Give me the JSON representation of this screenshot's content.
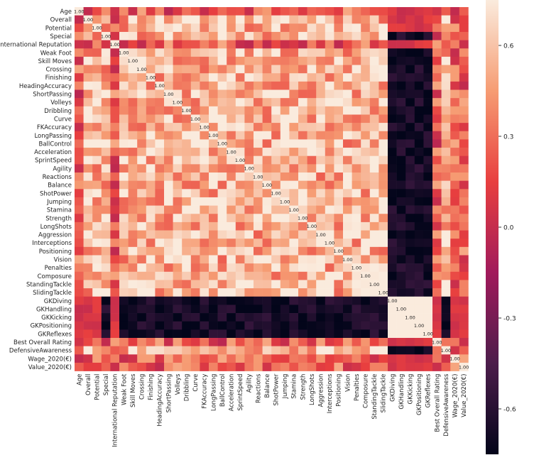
{
  "chart_data": {
    "type": "heatmap",
    "title": "",
    "xlabel": "",
    "ylabel": "",
    "rows": [
      "Age",
      "Overall",
      "Potential",
      "Special",
      "International Reputation",
      "Weak Foot",
      "Skill Moves",
      "Crossing",
      "Finishing",
      "HeadingAccuracy",
      "ShortPassing",
      "Volleys",
      "Dribbling",
      "Curve",
      "FKAccuracy",
      "LongPassing",
      "BallControl",
      "Acceleration",
      "SprintSpeed",
      "Agility",
      "Reactions",
      "Balance",
      "ShotPower",
      "Jumping",
      "Stamina",
      "Strength",
      "LongShots",
      "Aggression",
      "Interceptions",
      "Positioning",
      "Vision",
      "Penalties",
      "Composure",
      "StandingTackle",
      "SlidingTackle",
      "GKDiving",
      "GKHandling",
      "GKKicking",
      "GKPositioning",
      "GKReflexes",
      "Best Overall Rating",
      "DefensiveAwareness",
      "Wage_2020(€)",
      "Value_2020(€)"
    ],
    "columns": [
      "Age",
      "Overall",
      "Potential",
      "Special",
      "International Reputation",
      "Weak Foot",
      "Skill Moves",
      "Crossing",
      "Finishing",
      "HeadingAccuracy",
      "ShortPassing",
      "Volleys",
      "Dribbling",
      "Curve",
      "FKAccuracy",
      "LongPassing",
      "BallControl",
      "Acceleration",
      "SprintSpeed",
      "Agility",
      "Reactions",
      "Balance",
      "ShotPower",
      "Jumping",
      "Stamina",
      "Strength",
      "LongShots",
      "Aggression",
      "Interceptions",
      "Positioning",
      "Vision",
      "Penalties",
      "Composure",
      "StandingTackle",
      "SlidingTackle",
      "GKDiving",
      "GKHandling",
      "GKKicking",
      "GKPositioning",
      "GKReflexes",
      "Best Overall Rating",
      "DefensiveAwareness",
      "Wage_2020(€)",
      "Value_2020(€)"
    ],
    "cell_values_readable": false,
    "diagonal_value": "1.00",
    "colorbar": {
      "range": [
        -0.75,
        0.75
      ],
      "ticks": [
        "0.6",
        "0.3",
        "0.0",
        "-0.3",
        "-0.6"
      ],
      "tick_values": [
        0.6,
        0.3,
        0.0,
        -0.3,
        -0.6
      ]
    },
    "colormap": "rocket",
    "colormap_stops": [
      "#03051a",
      "#4c1d4b",
      "#a11a5b",
      "#e83f3f",
      "#f69c73",
      "#faebdd"
    ],
    "grid": false,
    "legend": "colorbar-right"
  }
}
